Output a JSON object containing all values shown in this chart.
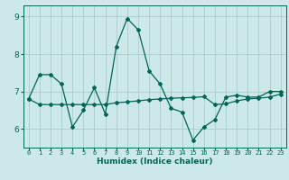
{
  "xlabel": "Humidex (Indice chaleur)",
  "background_color": "#cce8e8",
  "line_color": "#006655",
  "grid_color": "#aacccc",
  "xlim": [
    -0.5,
    23.5
  ],
  "ylim": [
    5.5,
    9.3
  ],
  "yticks": [
    6,
    7,
    8,
    9
  ],
  "xticks": [
    0,
    1,
    2,
    3,
    4,
    5,
    6,
    7,
    8,
    9,
    10,
    11,
    12,
    13,
    14,
    15,
    16,
    17,
    18,
    19,
    20,
    21,
    22,
    23
  ],
  "series1_x": [
    0,
    1,
    2,
    3,
    4,
    5,
    6,
    7,
    8,
    9,
    10,
    11,
    12,
    13,
    14,
    15,
    16,
    17,
    18,
    19,
    20,
    21,
    22,
    23
  ],
  "series1_y": [
    6.8,
    7.45,
    7.45,
    7.2,
    6.05,
    6.5,
    7.1,
    6.4,
    8.2,
    8.95,
    8.65,
    7.55,
    7.2,
    6.55,
    6.45,
    5.7,
    6.05,
    6.25,
    6.85,
    6.9,
    6.85,
    6.85,
    7.0,
    7.0
  ],
  "series2_x": [
    0,
    1,
    2,
    3,
    4,
    5,
    6,
    7,
    8,
    9,
    10,
    11,
    12,
    13,
    14,
    15,
    16,
    17,
    18,
    19,
    20,
    21,
    22,
    23
  ],
  "series2_y": [
    6.8,
    6.65,
    6.65,
    6.65,
    6.65,
    6.65,
    6.65,
    6.65,
    6.7,
    6.72,
    6.75,
    6.78,
    6.8,
    6.82,
    6.83,
    6.84,
    6.86,
    6.65,
    6.67,
    6.75,
    6.8,
    6.82,
    6.85,
    6.93
  ],
  "lw": 0.9,
  "ms": 2.0
}
